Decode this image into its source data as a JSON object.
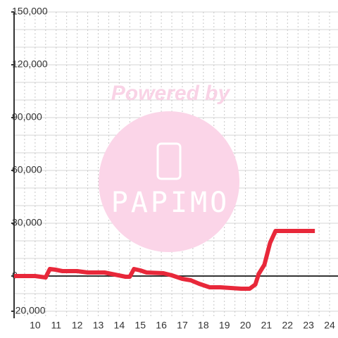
{
  "chart_data": {
    "type": "line",
    "x": [
      9,
      10,
      10.5,
      10.7,
      10.97,
      11.3,
      12,
      12.5,
      13.3,
      13.8,
      14.3,
      14.5,
      14.7,
      15,
      15.3,
      16.1,
      16.5,
      17,
      17.4,
      17.8,
      18.3,
      18.8,
      19.3,
      19.8,
      20.2,
      20.47,
      20.63,
      20.9,
      21.17,
      21.43,
      23.3
    ],
    "series": [
      {
        "color": "#e8283a",
        "values": [
          0,
          0,
          -800,
          4000,
          3600,
          2800,
          2800,
          2000,
          2000,
          800,
          -400,
          -400,
          4000,
          3200,
          2000,
          1600,
          400,
          -1600,
          -2400,
          -4400,
          -6400,
          -6400,
          -6800,
          -7200,
          -7200,
          -4800,
          1200,
          6400,
          18800,
          25600,
          25600
        ]
      }
    ],
    "xlim": [
      9,
      24.4
    ],
    "ylim": [
      -24000,
      150000
    ],
    "xticks": [
      10,
      11,
      12,
      13,
      14,
      15,
      16,
      17,
      18,
      19,
      20,
      21,
      22,
      23,
      24
    ],
    "yticks": [
      {
        "value": 150000,
        "label": "150,000"
      },
      {
        "value": 120000,
        "label": "120,000"
      },
      {
        "value": 90000,
        "label": "90,000"
      },
      {
        "value": 60000,
        "label": "60,000"
      },
      {
        "value": 30000,
        "label": "30,000"
      },
      0,
      {
        "value": -20000,
        "label": "-20,000"
      }
    ],
    "grid_y": [
      -20000,
      -10000,
      0,
      10000,
      20000,
      30000,
      40000,
      50000,
      60000,
      70000,
      80000,
      90000,
      100000,
      110000,
      120000,
      130000,
      140000,
      150000
    ],
    "grid_x": [
      9.5,
      10,
      10.5,
      11,
      11.5,
      12,
      12.5,
      13,
      13.5,
      14,
      14.5,
      15,
      15.5,
      16,
      16.5,
      17,
      17.5,
      18,
      18.5,
      19,
      19.5,
      20,
      20.5,
      21,
      21.5,
      22,
      22.5,
      23,
      23.5,
      24
    ],
    "grid": true
  },
  "watermark": {
    "text": "Powered by",
    "logo": "PAPIMO"
  }
}
